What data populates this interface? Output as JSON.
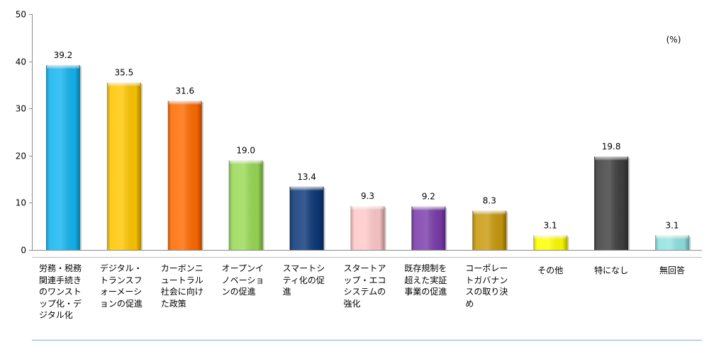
{
  "chart_data": {
    "type": "bar",
    "categories": [
      "労務・税務関連手続きのワンストップ化・デジタル化",
      "デジタル・トランスフォーメーションの促進",
      "カーボンニュートラル社会に向けた政策",
      "オープンイノベーションの促進",
      "スマートシティ化の促進",
      "スタートアップ・エコシステムの強化",
      "既存規制を超えた実証事業の促進",
      "コーポレートガバナンスの取り決め",
      "その他",
      "特になし",
      "無回答"
    ],
    "values": [
      39.2,
      35.5,
      31.6,
      19.0,
      13.4,
      9.3,
      9.2,
      8.3,
      3.1,
      19.8,
      3.1
    ],
    "colors": [
      "#14B4F0",
      "#FFC600",
      "#FF6B00",
      "#99D955",
      "#0C3878",
      "#FFC8C8",
      "#7A3CAA",
      "#C99A0E",
      "#FFFF00",
      "#3F3F3F",
      "#90E2E2"
    ],
    "unit": "(%)",
    "ylim": [
      0,
      50
    ],
    "yticks": [
      0,
      10,
      20,
      30,
      40,
      50
    ],
    "grid": false,
    "legend": "none"
  }
}
